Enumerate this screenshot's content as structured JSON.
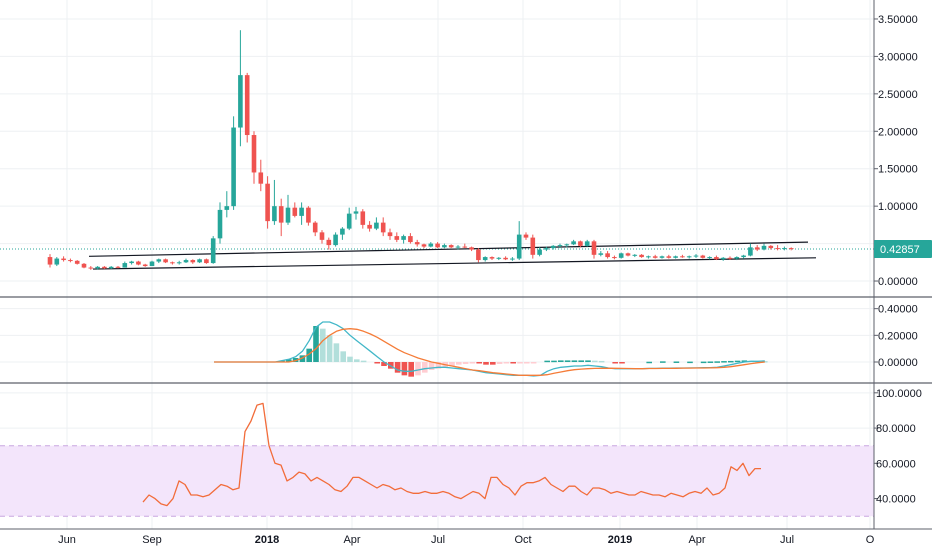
{
  "colors": {
    "up": "#26a69a",
    "down": "#ef5350",
    "macd_line": "#42b7c8",
    "signal_line": "#f57c38",
    "hist_up_strong": "#26a69a",
    "hist_up_weak": "#b2dfdb",
    "hist_down_strong": "#ef5350",
    "hist_down_weak": "#ffcdd2",
    "rsi_line": "#f26c3a",
    "rsi_band": "#f3e5fb",
    "rsi_bound_line": "#c9a5e0",
    "last_price": "#26a69a",
    "trendline": "#131722",
    "grid": "#eef0f3",
    "separator": "#5d606b"
  },
  "price_axis": {
    "ticks": [
      "3.50000",
      "3.00000",
      "2.50000",
      "2.00000",
      "1.50000",
      "1.00000",
      "0.00000"
    ]
  },
  "macd_axis": {
    "ticks": [
      "0.40000",
      "0.20000",
      "0.00000"
    ]
  },
  "rsi_axis": {
    "ticks": [
      "100.0000",
      "80.0000",
      "60.0000",
      "40.0000"
    ]
  },
  "last_price_label": "0.42857",
  "time_axis": {
    "labels": [
      {
        "text": "Jun",
        "bold": false
      },
      {
        "text": "Sep",
        "bold": false
      },
      {
        "text": "2018",
        "bold": true
      },
      {
        "text": "Apr",
        "bold": false
      },
      {
        "text": "Jul",
        "bold": false
      },
      {
        "text": "Oct",
        "bold": false
      },
      {
        "text": "2019",
        "bold": true
      },
      {
        "text": "Apr",
        "bold": false
      },
      {
        "text": "Jul",
        "bold": false
      },
      {
        "text": "O",
        "bold": false
      }
    ]
  },
  "chart_data": [
    {
      "type": "candlestick",
      "pane": "price",
      "ylim": [
        -0.2,
        3.7
      ],
      "last_price": 0.42857,
      "interval": "weekly",
      "x_start": "2017-05-14",
      "candles": [
        {
          "o": 0.32,
          "h": 0.36,
          "l": 0.18,
          "c": 0.22
        },
        {
          "o": 0.22,
          "h": 0.32,
          "l": 0.2,
          "c": 0.3
        },
        {
          "o": 0.3,
          "h": 0.33,
          "l": 0.26,
          "c": 0.28
        },
        {
          "o": 0.28,
          "h": 0.3,
          "l": 0.25,
          "c": 0.27
        },
        {
          "o": 0.27,
          "h": 0.28,
          "l": 0.22,
          "c": 0.23
        },
        {
          "o": 0.23,
          "h": 0.24,
          "l": 0.17,
          "c": 0.18
        },
        {
          "o": 0.18,
          "h": 0.2,
          "l": 0.15,
          "c": 0.17
        },
        {
          "o": 0.17,
          "h": 0.2,
          "l": 0.15,
          "c": 0.19
        },
        {
          "o": 0.19,
          "h": 0.2,
          "l": 0.16,
          "c": 0.17
        },
        {
          "o": 0.17,
          "h": 0.2,
          "l": 0.16,
          "c": 0.19
        },
        {
          "o": 0.19,
          "h": 0.2,
          "l": 0.17,
          "c": 0.18
        },
        {
          "o": 0.18,
          "h": 0.26,
          "l": 0.18,
          "c": 0.24
        },
        {
          "o": 0.24,
          "h": 0.27,
          "l": 0.22,
          "c": 0.26
        },
        {
          "o": 0.26,
          "h": 0.27,
          "l": 0.21,
          "c": 0.22
        },
        {
          "o": 0.22,
          "h": 0.23,
          "l": 0.19,
          "c": 0.2
        },
        {
          "o": 0.2,
          "h": 0.27,
          "l": 0.2,
          "c": 0.26
        },
        {
          "o": 0.26,
          "h": 0.3,
          "l": 0.24,
          "c": 0.29
        },
        {
          "o": 0.29,
          "h": 0.3,
          "l": 0.24,
          "c": 0.25
        },
        {
          "o": 0.25,
          "h": 0.26,
          "l": 0.22,
          "c": 0.24
        },
        {
          "o": 0.24,
          "h": 0.27,
          "l": 0.22,
          "c": 0.25
        },
        {
          "o": 0.25,
          "h": 0.3,
          "l": 0.24,
          "c": 0.28
        },
        {
          "o": 0.28,
          "h": 0.29,
          "l": 0.23,
          "c": 0.25
        },
        {
          "o": 0.25,
          "h": 0.3,
          "l": 0.24,
          "c": 0.29
        },
        {
          "o": 0.29,
          "h": 0.3,
          "l": 0.23,
          "c": 0.24
        },
        {
          "o": 0.24,
          "h": 0.6,
          "l": 0.23,
          "c": 0.57
        },
        {
          "o": 0.57,
          "h": 1.05,
          "l": 0.5,
          "c": 0.95
        },
        {
          "o": 0.95,
          "h": 1.2,
          "l": 0.85,
          "c": 1.0
        },
        {
          "o": 1.0,
          "h": 2.2,
          "l": 0.95,
          "c": 2.05
        },
        {
          "o": 2.05,
          "h": 3.35,
          "l": 1.8,
          "c": 2.75
        },
        {
          "o": 2.75,
          "h": 2.78,
          "l": 1.85,
          "c": 1.95
        },
        {
          "o": 1.95,
          "h": 2.0,
          "l": 1.3,
          "c": 1.45
        },
        {
          "o": 1.45,
          "h": 1.62,
          "l": 1.2,
          "c": 1.3
        },
        {
          "o": 1.3,
          "h": 1.4,
          "l": 0.7,
          "c": 0.8
        },
        {
          "o": 0.8,
          "h": 1.35,
          "l": 0.75,
          "c": 1.0
        },
        {
          "o": 1.0,
          "h": 1.1,
          "l": 0.6,
          "c": 0.78
        },
        {
          "o": 0.78,
          "h": 1.15,
          "l": 0.75,
          "c": 0.98
        },
        {
          "o": 0.98,
          "h": 1.05,
          "l": 0.85,
          "c": 0.87
        },
        {
          "o": 0.87,
          "h": 1.05,
          "l": 0.75,
          "c": 0.98
        },
        {
          "o": 0.98,
          "h": 1.0,
          "l": 0.74,
          "c": 0.78
        },
        {
          "o": 0.78,
          "h": 0.8,
          "l": 0.6,
          "c": 0.65
        },
        {
          "o": 0.65,
          "h": 0.68,
          "l": 0.5,
          "c": 0.55
        },
        {
          "o": 0.55,
          "h": 0.58,
          "l": 0.42,
          "c": 0.48
        },
        {
          "o": 0.48,
          "h": 0.65,
          "l": 0.46,
          "c": 0.62
        },
        {
          "o": 0.62,
          "h": 0.72,
          "l": 0.55,
          "c": 0.7
        },
        {
          "o": 0.7,
          "h": 0.98,
          "l": 0.68,
          "c": 0.9
        },
        {
          "o": 0.9,
          "h": 0.99,
          "l": 0.82,
          "c": 0.93
        },
        {
          "o": 0.93,
          "h": 0.96,
          "l": 0.7,
          "c": 0.75
        },
        {
          "o": 0.75,
          "h": 0.8,
          "l": 0.66,
          "c": 0.7
        },
        {
          "o": 0.7,
          "h": 0.85,
          "l": 0.68,
          "c": 0.78
        },
        {
          "o": 0.78,
          "h": 0.85,
          "l": 0.6,
          "c": 0.65
        },
        {
          "o": 0.65,
          "h": 0.7,
          "l": 0.55,
          "c": 0.6
        },
        {
          "o": 0.6,
          "h": 0.65,
          "l": 0.52,
          "c": 0.55
        },
        {
          "o": 0.55,
          "h": 0.62,
          "l": 0.5,
          "c": 0.6
        },
        {
          "o": 0.6,
          "h": 0.64,
          "l": 0.5,
          "c": 0.52
        },
        {
          "o": 0.52,
          "h": 0.55,
          "l": 0.46,
          "c": 0.49
        },
        {
          "o": 0.49,
          "h": 0.5,
          "l": 0.44,
          "c": 0.46
        },
        {
          "o": 0.46,
          "h": 0.52,
          "l": 0.45,
          "c": 0.5
        },
        {
          "o": 0.5,
          "h": 0.52,
          "l": 0.44,
          "c": 0.45
        },
        {
          "o": 0.45,
          "h": 0.5,
          "l": 0.44,
          "c": 0.48
        },
        {
          "o": 0.48,
          "h": 0.49,
          "l": 0.44,
          "c": 0.45
        },
        {
          "o": 0.45,
          "h": 0.48,
          "l": 0.42,
          "c": 0.46
        },
        {
          "o": 0.46,
          "h": 0.5,
          "l": 0.44,
          "c": 0.45
        },
        {
          "o": 0.45,
          "h": 0.46,
          "l": 0.4,
          "c": 0.42
        },
        {
          "o": 0.42,
          "h": 0.44,
          "l": 0.25,
          "c": 0.28
        },
        {
          "o": 0.28,
          "h": 0.33,
          "l": 0.26,
          "c": 0.32
        },
        {
          "o": 0.32,
          "h": 0.33,
          "l": 0.28,
          "c": 0.3
        },
        {
          "o": 0.3,
          "h": 0.32,
          "l": 0.28,
          "c": 0.31
        },
        {
          "o": 0.31,
          "h": 0.33,
          "l": 0.28,
          "c": 0.29
        },
        {
          "o": 0.29,
          "h": 0.32,
          "l": 0.27,
          "c": 0.3
        },
        {
          "o": 0.3,
          "h": 0.8,
          "l": 0.28,
          "c": 0.62
        },
        {
          "o": 0.62,
          "h": 0.65,
          "l": 0.55,
          "c": 0.58
        },
        {
          "o": 0.58,
          "h": 0.62,
          "l": 0.3,
          "c": 0.35
        },
        {
          "o": 0.35,
          "h": 0.45,
          "l": 0.33,
          "c": 0.42
        },
        {
          "o": 0.42,
          "h": 0.46,
          "l": 0.4,
          "c": 0.44
        },
        {
          "o": 0.44,
          "h": 0.48,
          "l": 0.42,
          "c": 0.47
        },
        {
          "o": 0.47,
          "h": 0.5,
          "l": 0.44,
          "c": 0.48
        },
        {
          "o": 0.48,
          "h": 0.5,
          "l": 0.45,
          "c": 0.49
        },
        {
          "o": 0.49,
          "h": 0.55,
          "l": 0.48,
          "c": 0.53
        },
        {
          "o": 0.53,
          "h": 0.54,
          "l": 0.45,
          "c": 0.47
        },
        {
          "o": 0.47,
          "h": 0.55,
          "l": 0.46,
          "c": 0.53
        },
        {
          "o": 0.53,
          "h": 0.55,
          "l": 0.3,
          "c": 0.35
        },
        {
          "o": 0.35,
          "h": 0.4,
          "l": 0.33,
          "c": 0.37
        },
        {
          "o": 0.37,
          "h": 0.4,
          "l": 0.3,
          "c": 0.32
        },
        {
          "o": 0.32,
          "h": 0.34,
          "l": 0.29,
          "c": 0.31
        },
        {
          "o": 0.31,
          "h": 0.38,
          "l": 0.3,
          "c": 0.37
        },
        {
          "o": 0.37,
          "h": 0.38,
          "l": 0.33,
          "c": 0.34
        },
        {
          "o": 0.34,
          "h": 0.36,
          "l": 0.32,
          "c": 0.35
        },
        {
          "o": 0.35,
          "h": 0.36,
          "l": 0.31,
          "c": 0.32
        },
        {
          "o": 0.32,
          "h": 0.34,
          "l": 0.3,
          "c": 0.33
        },
        {
          "o": 0.33,
          "h": 0.35,
          "l": 0.3,
          "c": 0.31
        },
        {
          "o": 0.31,
          "h": 0.34,
          "l": 0.3,
          "c": 0.33
        },
        {
          "o": 0.33,
          "h": 0.35,
          "l": 0.3,
          "c": 0.31
        },
        {
          "o": 0.31,
          "h": 0.34,
          "l": 0.3,
          "c": 0.33
        },
        {
          "o": 0.33,
          "h": 0.35,
          "l": 0.31,
          "c": 0.32
        },
        {
          "o": 0.32,
          "h": 0.34,
          "l": 0.3,
          "c": 0.33
        },
        {
          "o": 0.33,
          "h": 0.36,
          "l": 0.31,
          "c": 0.34
        },
        {
          "o": 0.34,
          "h": 0.35,
          "l": 0.3,
          "c": 0.31
        },
        {
          "o": 0.31,
          "h": 0.33,
          "l": 0.29,
          "c": 0.32
        },
        {
          "o": 0.32,
          "h": 0.34,
          "l": 0.28,
          "c": 0.29
        },
        {
          "o": 0.29,
          "h": 0.32,
          "l": 0.27,
          "c": 0.31
        },
        {
          "o": 0.31,
          "h": 0.33,
          "l": 0.28,
          "c": 0.3
        },
        {
          "o": 0.3,
          "h": 0.33,
          "l": 0.28,
          "c": 0.32
        },
        {
          "o": 0.32,
          "h": 0.35,
          "l": 0.3,
          "c": 0.34
        },
        {
          "o": 0.34,
          "h": 0.5,
          "l": 0.33,
          "c": 0.45
        },
        {
          "o": 0.45,
          "h": 0.48,
          "l": 0.4,
          "c": 0.42
        },
        {
          "o": 0.42,
          "h": 0.5,
          "l": 0.41,
          "c": 0.47
        },
        {
          "o": 0.47,
          "h": 0.48,
          "l": 0.42,
          "c": 0.44
        },
        {
          "o": 0.44,
          "h": 0.48,
          "l": 0.41,
          "c": 0.43
        },
        {
          "o": 0.43,
          "h": 0.46,
          "l": 0.41,
          "c": 0.44
        },
        {
          "o": 0.44,
          "h": 0.45,
          "l": 0.41,
          "c": 0.43
        }
      ]
    },
    {
      "type": "line",
      "pane": "macd",
      "ylim": [
        -0.15,
        0.48
      ],
      "series": [
        {
          "values": [
            0.0,
            0.0,
            0.0,
            0.0,
            0.0,
            0.0,
            0.0,
            0.0,
            0.0,
            0.0,
            0.01,
            0.02,
            0.04,
            0.08,
            0.16,
            0.26,
            0.3,
            0.3,
            0.28,
            0.25,
            0.2,
            0.16,
            0.12,
            0.08,
            0.04,
            0.0,
            -0.03,
            -0.06,
            -0.07,
            -0.07,
            -0.06,
            -0.05,
            -0.045,
            -0.04,
            -0.04,
            -0.045,
            -0.05,
            -0.055,
            -0.06,
            -0.07,
            -0.08,
            -0.085,
            -0.09,
            -0.095,
            -0.1,
            -0.1,
            -0.1,
            -0.105,
            -0.1,
            -0.07,
            -0.05,
            -0.04,
            -0.035,
            -0.03,
            -0.03,
            -0.025,
            -0.03,
            -0.035,
            -0.045,
            -0.05,
            -0.05,
            -0.05,
            -0.05,
            -0.05,
            -0.048,
            -0.048,
            -0.046,
            -0.046,
            -0.045,
            -0.045,
            -0.044,
            -0.044,
            -0.043,
            -0.042,
            -0.04,
            -0.03,
            -0.02,
            -0.01,
            0.0,
            0.005,
            0.005,
            0.008
          ]
        },
        {
          "values": [
            0.0,
            0.0,
            0.0,
            0.0,
            0.0,
            0.0,
            0.0,
            0.0,
            0.0,
            0.0,
            0.0,
            0.0,
            0.01,
            0.03,
            0.06,
            0.1,
            0.16,
            0.2,
            0.23,
            0.245,
            0.25,
            0.245,
            0.23,
            0.21,
            0.185,
            0.155,
            0.125,
            0.095,
            0.07,
            0.05,
            0.03,
            0.015,
            0.0,
            -0.01,
            -0.02,
            -0.03,
            -0.04,
            -0.05,
            -0.06,
            -0.065,
            -0.072,
            -0.08,
            -0.085,
            -0.09,
            -0.095,
            -0.1,
            -0.1,
            -0.1,
            -0.1,
            -0.095,
            -0.085,
            -0.075,
            -0.065,
            -0.058,
            -0.053,
            -0.05,
            -0.048,
            -0.047,
            -0.047,
            -0.047,
            -0.048,
            -0.049,
            -0.05,
            -0.05,
            -0.049,
            -0.049,
            -0.048,
            -0.048,
            -0.047,
            -0.046,
            -0.046,
            -0.045,
            -0.045,
            -0.044,
            -0.043,
            -0.04,
            -0.035,
            -0.028,
            -0.02,
            -0.012,
            -0.005,
            0.0
          ]
        }
      ],
      "histogram": [
        0,
        0,
        0,
        0,
        0,
        0,
        0,
        0,
        0,
        0,
        0.01,
        0.02,
        0.03,
        0.05,
        0.1,
        0.27,
        0.25,
        0.2,
        0.14,
        0.08,
        0.04,
        0.02,
        0.01,
        0,
        -0.01,
        -0.03,
        -0.05,
        -0.08,
        -0.1,
        -0.11,
        -0.1,
        -0.08,
        -0.06,
        -0.05,
        -0.04,
        -0.03,
        -0.02,
        -0.015,
        -0.01,
        -0.01,
        -0.02,
        -0.02,
        -0.015,
        -0.01,
        -0.01,
        -0.005,
        -0.003,
        -0.002,
        0,
        0.01,
        0.01,
        0.012,
        0.012,
        0.012,
        0.012,
        0.012,
        0.01,
        0.008,
        0,
        -0.002,
        -0.002,
        0,
        0,
        0,
        0.002,
        0,
        0.005,
        0,
        0.004,
        0,
        0.003,
        0,
        0.003,
        0.004,
        0.005,
        0.007,
        0.008,
        0.01,
        0.012,
        0.01,
        0.008,
        0.007
      ]
    },
    {
      "type": "line",
      "pane": "rsi",
      "ylim": [
        25,
        105
      ],
      "bands": [
        30,
        70
      ],
      "series": [
        {
          "values": [
            38,
            42,
            40,
            37,
            36,
            40,
            50,
            48,
            42,
            42,
            41,
            42,
            45,
            48,
            47,
            45,
            46,
            78,
            84,
            93,
            94,
            70,
            60,
            59,
            50,
            52,
            55,
            54,
            50,
            52,
            50,
            48,
            45,
            44,
            47,
            52,
            52,
            50,
            48,
            46,
            48,
            47,
            45,
            46,
            44,
            43,
            43,
            44,
            43,
            43,
            44,
            43,
            41,
            40,
            42,
            44,
            43,
            40,
            52,
            52,
            48,
            46,
            42,
            47,
            49,
            49,
            50,
            52,
            48,
            46,
            44,
            47,
            47,
            44,
            42,
            46,
            46,
            45,
            43,
            44,
            43,
            42,
            42,
            44,
            43,
            42,
            42,
            41,
            43,
            42,
            41,
            43,
            44,
            43,
            46,
            42,
            43,
            46,
            58,
            56,
            60,
            53,
            57,
            57
          ]
        }
      ]
    }
  ]
}
